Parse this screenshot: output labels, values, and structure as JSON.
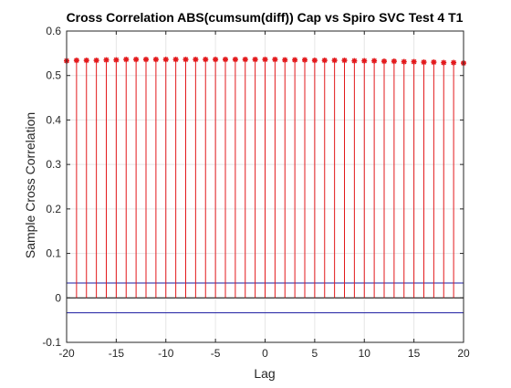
{
  "colors": {
    "stem": "#e3191c",
    "bound": "#1a1aa0",
    "grid": "#e6e6e6",
    "axis": "#262626"
  },
  "chart_data": {
    "type": "stem",
    "title": "Cross Correlation ABS(cumsum(diff)) Cap vs Spiro SVC Test 4 T1",
    "xlabel": "Lag",
    "ylabel": "Sample Cross Correlation",
    "xlim": [
      -20,
      20
    ],
    "ylim": [
      -0.1,
      0.6
    ],
    "xticks": [
      -20,
      -15,
      -10,
      -5,
      0,
      5,
      10,
      15,
      20
    ],
    "yticks": [
      -0.1,
      0,
      0.1,
      0.2,
      0.3,
      0.4,
      0.5,
      0.6
    ],
    "xtick_labels": [
      "-20",
      "-15",
      "-10",
      "-5",
      "0",
      "5",
      "10",
      "15",
      "20"
    ],
    "ytick_labels": [
      "-0.1",
      "0",
      "0.1",
      "0.2",
      "0.3",
      "0.4",
      "0.5",
      "0.6"
    ],
    "grid": true,
    "series": [
      {
        "x": [
          -20,
          -19,
          -18,
          -17,
          -16,
          -15,
          -14,
          -13,
          -12,
          -11,
          -10,
          -9,
          -8,
          -7,
          -6,
          -5,
          -4,
          -3,
          -2,
          -1,
          0,
          1,
          2,
          3,
          4,
          5,
          6,
          7,
          8,
          9,
          10,
          11,
          12,
          13,
          14,
          15,
          16,
          17,
          18,
          19,
          20
        ],
        "values": [
          0.533,
          0.534,
          0.534,
          0.534,
          0.535,
          0.535,
          0.536,
          0.536,
          0.536,
          0.536,
          0.536,
          0.536,
          0.536,
          0.536,
          0.536,
          0.536,
          0.536,
          0.536,
          0.536,
          0.536,
          0.536,
          0.536,
          0.535,
          0.535,
          0.535,
          0.534,
          0.534,
          0.534,
          0.534,
          0.533,
          0.533,
          0.533,
          0.532,
          0.532,
          0.531,
          0.531,
          0.53,
          0.53,
          0.529,
          0.529,
          0.528
        ]
      }
    ],
    "bounds": [
      0.0335,
      -0.0335
    ]
  }
}
